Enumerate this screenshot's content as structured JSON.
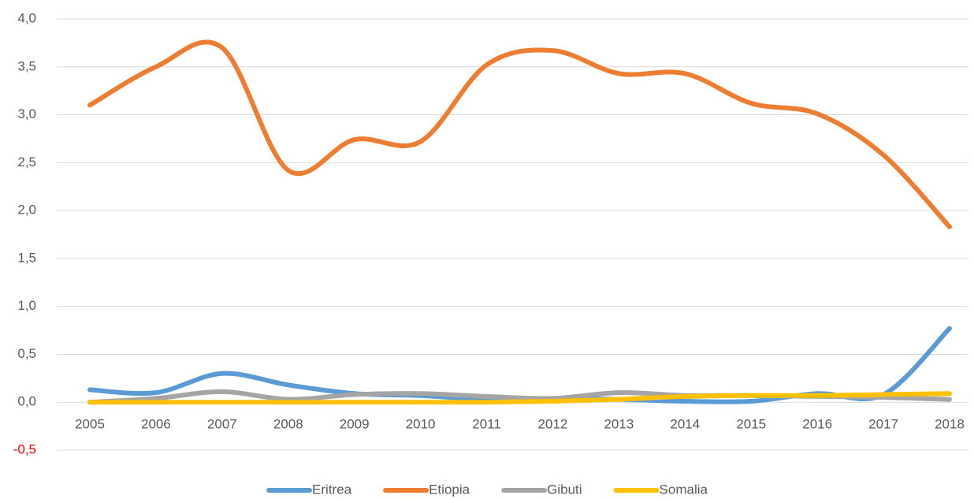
{
  "chart_data": {
    "type": "line",
    "smooth": true,
    "categories": [
      "2005",
      "2006",
      "2007",
      "2008",
      "2009",
      "2010",
      "2011",
      "2012",
      "2013",
      "2014",
      "2015",
      "2016",
      "2017",
      "2018"
    ],
    "series": [
      {
        "name": "Eritrea",
        "color": "#5b9bd5",
        "values": [
          0.13,
          0.1,
          0.3,
          0.18,
          0.09,
          0.07,
          0.03,
          0.04,
          0.03,
          0.01,
          0.01,
          0.09,
          0.08,
          0.77
        ]
      },
      {
        "name": "Etiopia",
        "color": "#ed7d31",
        "values": [
          3.1,
          3.5,
          3.7,
          2.42,
          2.74,
          2.72,
          3.52,
          3.67,
          3.43,
          3.43,
          3.12,
          3.01,
          2.58,
          1.83
        ]
      },
      {
        "name": "Gibuti",
        "color": "#a5a5a5",
        "values": [
          0.0,
          0.04,
          0.11,
          0.03,
          0.08,
          0.09,
          0.06,
          0.04,
          0.1,
          0.07,
          0.07,
          0.06,
          0.05,
          0.03
        ]
      },
      {
        "name": "Somalia",
        "color": "#ffc000",
        "values": [
          0,
          0,
          0,
          0,
          0,
          0,
          0,
          0.01,
          0.03,
          0.06,
          0.07,
          0.07,
          0.08,
          0.09
        ]
      }
    ],
    "ylim": [
      -0.5,
      4.0
    ],
    "yticks": [
      {
        "value": -0.5,
        "label": "-0,5"
      },
      {
        "value": 0,
        "label": "0,0"
      },
      {
        "value": 0.5,
        "label": "0,5"
      },
      {
        "value": 1.0,
        "label": "1,0"
      },
      {
        "value": 1.5,
        "label": "1,5"
      },
      {
        "value": 2.0,
        "label": "2,0"
      },
      {
        "value": 2.5,
        "label": "2,5"
      },
      {
        "value": 3.0,
        "label": "3,0"
      },
      {
        "value": 3.5,
        "label": "3,5"
      },
      {
        "value": 4.0,
        "label": "4,0"
      }
    ],
    "negative_tick_color": "#ff0000",
    "grid": true,
    "legend": "bottom"
  }
}
